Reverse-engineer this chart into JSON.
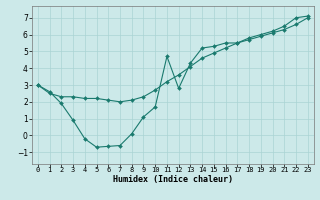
{
  "xlabel": "Humidex (Indice chaleur)",
  "ylabel": "",
  "xlim": [
    -0.5,
    23.5
  ],
  "ylim": [
    -1.7,
    7.7
  ],
  "xticks": [
    0,
    1,
    2,
    3,
    4,
    5,
    6,
    7,
    8,
    9,
    10,
    11,
    12,
    13,
    14,
    15,
    16,
    17,
    18,
    19,
    20,
    21,
    22,
    23
  ],
  "yticks": [
    -1,
    0,
    1,
    2,
    3,
    4,
    5,
    6,
    7
  ],
  "background_color": "#cce9e9",
  "grid_color": "#aad4d4",
  "line_color": "#1a7a6e",
  "line1_x": [
    0,
    1,
    2,
    3,
    4,
    5,
    6,
    7,
    8,
    9,
    10,
    11,
    12,
    13,
    14,
    15,
    16,
    17,
    18,
    19,
    20,
    21,
    22,
    23
  ],
  "line1_y": [
    3.0,
    2.6,
    1.9,
    0.9,
    -0.2,
    -0.7,
    -0.65,
    -0.6,
    0.1,
    1.1,
    1.7,
    4.7,
    2.8,
    4.3,
    5.2,
    5.3,
    5.5,
    5.5,
    5.8,
    6.0,
    6.2,
    6.5,
    7.0,
    7.1
  ],
  "line2_x": [
    0,
    1,
    2,
    3,
    4,
    5,
    6,
    7,
    8,
    9,
    10,
    11,
    12,
    13,
    14,
    15,
    16,
    17,
    18,
    19,
    20,
    21,
    22,
    23
  ],
  "line2_y": [
    3.0,
    2.5,
    2.3,
    2.3,
    2.2,
    2.2,
    2.1,
    2.0,
    2.1,
    2.3,
    2.7,
    3.2,
    3.6,
    4.1,
    4.6,
    4.9,
    5.2,
    5.5,
    5.7,
    5.9,
    6.1,
    6.3,
    6.6,
    7.0
  ],
  "xtick_fontsize": 5.0,
  "ytick_fontsize": 5.5,
  "xlabel_fontsize": 6.0,
  "marker_size": 2.0,
  "linewidth": 0.8
}
